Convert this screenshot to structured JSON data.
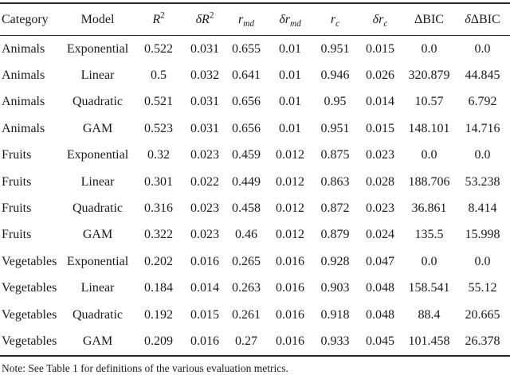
{
  "table": {
    "headers": [
      {
        "id": "category",
        "label": "Category",
        "parts": [
          {
            "t": "Category"
          }
        ]
      },
      {
        "id": "model",
        "label": "Model",
        "parts": [
          {
            "t": "Model"
          }
        ]
      },
      {
        "id": "r2",
        "label": "R^2",
        "parts": [
          {
            "t": "R",
            "s": "i"
          },
          {
            "t": "2",
            "s": "sup"
          }
        ]
      },
      {
        "id": "delta-r2",
        "label": "dR^2",
        "parts": [
          {
            "t": "δR",
            "s": "i"
          },
          {
            "t": "2",
            "s": "sup"
          }
        ]
      },
      {
        "id": "r-md",
        "label": "r_md",
        "parts": [
          {
            "t": "r",
            "s": "i"
          },
          {
            "t": "md",
            "s": "sub"
          }
        ]
      },
      {
        "id": "delta-r-md",
        "label": "dr_md",
        "parts": [
          {
            "t": "δr",
            "s": "i"
          },
          {
            "t": "md",
            "s": "sub"
          }
        ]
      },
      {
        "id": "r-c",
        "label": "r_c",
        "parts": [
          {
            "t": "r",
            "s": "i"
          },
          {
            "t": "c",
            "s": "sub"
          }
        ]
      },
      {
        "id": "delta-r-c",
        "label": "dr_c",
        "parts": [
          {
            "t": "δr",
            "s": "i"
          },
          {
            "t": "c",
            "s": "sub"
          }
        ]
      },
      {
        "id": "dbic",
        "label": "ΔBIC",
        "parts": [
          {
            "t": "ΔBIC"
          }
        ]
      },
      {
        "id": "delta-dbic",
        "label": "δΔBIC",
        "parts": [
          {
            "t": "δ",
            "s": "i"
          },
          {
            "t": "ΔBIC"
          }
        ]
      }
    ],
    "rows": [
      [
        "Animals",
        "Exponential",
        "0.522",
        "0.031",
        "0.655",
        "0.01",
        "0.951",
        "0.015",
        "0.0",
        "0.0"
      ],
      [
        "Animals",
        "Linear",
        "0.5",
        "0.032",
        "0.641",
        "0.01",
        "0.946",
        "0.026",
        "320.879",
        "44.845"
      ],
      [
        "Animals",
        "Quadratic",
        "0.521",
        "0.031",
        "0.656",
        "0.01",
        "0.95",
        "0.014",
        "10.57",
        "6.792"
      ],
      [
        "Animals",
        "GAM",
        "0.523",
        "0.031",
        "0.656",
        "0.01",
        "0.951",
        "0.015",
        "148.101",
        "14.716"
      ],
      [
        "Fruits",
        "Exponential",
        "0.32",
        "0.023",
        "0.459",
        "0.012",
        "0.875",
        "0.023",
        "0.0",
        "0.0"
      ],
      [
        "Fruits",
        "Linear",
        "0.301",
        "0.022",
        "0.449",
        "0.012",
        "0.863",
        "0.028",
        "188.706",
        "53.238"
      ],
      [
        "Fruits",
        "Quadratic",
        "0.316",
        "0.023",
        "0.458",
        "0.012",
        "0.872",
        "0.023",
        "36.861",
        "8.414"
      ],
      [
        "Fruits",
        "GAM",
        "0.322",
        "0.023",
        "0.46",
        "0.012",
        "0.879",
        "0.024",
        "135.5",
        "15.998"
      ],
      [
        "Vegetables",
        "Exponential",
        "0.202",
        "0.016",
        "0.265",
        "0.016",
        "0.928",
        "0.047",
        "0.0",
        "0.0"
      ],
      [
        "Vegetables",
        "Linear",
        "0.184",
        "0.014",
        "0.263",
        "0.016",
        "0.903",
        "0.048",
        "158.541",
        "55.12"
      ],
      [
        "Vegetables",
        "Quadratic",
        "0.192",
        "0.015",
        "0.261",
        "0.016",
        "0.918",
        "0.048",
        "88.4",
        "20.665"
      ],
      [
        "Vegetables",
        "GAM",
        "0.209",
        "0.016",
        "0.27",
        "0.016",
        "0.933",
        "0.045",
        "101.458",
        "26.378"
      ]
    ]
  },
  "note": "Note: See Table 1 for definitions of the various evaluation metrics.",
  "colors": {
    "text": "#1b1b1b",
    "rule": "#2a2a2a",
    "background": "#ffffff"
  }
}
